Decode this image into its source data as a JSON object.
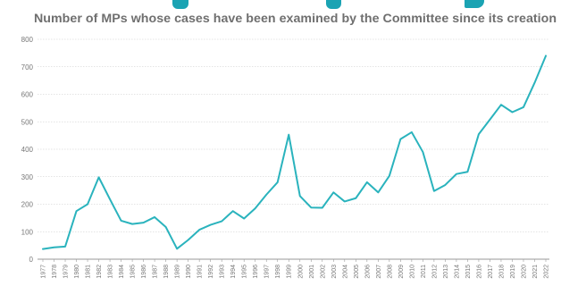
{
  "chart_data": {
    "type": "line",
    "title": "Number of MPs whose cases have been examined by the Committee since its creation",
    "xlabel": "",
    "ylabel": "",
    "ylim": [
      0,
      800
    ],
    "yticks": [
      0,
      100,
      200,
      300,
      400,
      500,
      600,
      700,
      800
    ],
    "grid": "horizontal",
    "legend": "none",
    "line_color": "#2ab3bd",
    "grid_color": "#c9c9c9",
    "categories": [
      "1977",
      "1978",
      "1979",
      "1980",
      "1981",
      "1982",
      "1983",
      "1984",
      "1985",
      "1986",
      "1987",
      "1988",
      "1989",
      "1990",
      "1991",
      "1992",
      "1993",
      "1994",
      "1995",
      "1996",
      "1997",
      "1998",
      "1999",
      "2000",
      "2001",
      "2002",
      "2003",
      "2004",
      "2005",
      "2006",
      "2007",
      "2008",
      "2009",
      "2010",
      "2011",
      "2012",
      "2013",
      "2014",
      "2015",
      "2016",
      "2017",
      "2018",
      "2019",
      "2020",
      "2021",
      "2022"
    ],
    "series": [
      {
        "values": [
          37,
          43,
          46,
          175,
          200,
          298,
          218,
          140,
          128,
          133,
          153,
          117,
          38,
          70,
          107,
          125,
          138,
          175,
          148,
          185,
          235,
          280,
          453,
          230,
          188,
          187,
          243,
          210,
          222,
          280,
          243,
          303,
          437,
          462,
          390,
          248,
          270,
          310,
          318,
          455,
          508,
          562,
          535,
          553,
          642,
          740
        ]
      }
    ]
  }
}
